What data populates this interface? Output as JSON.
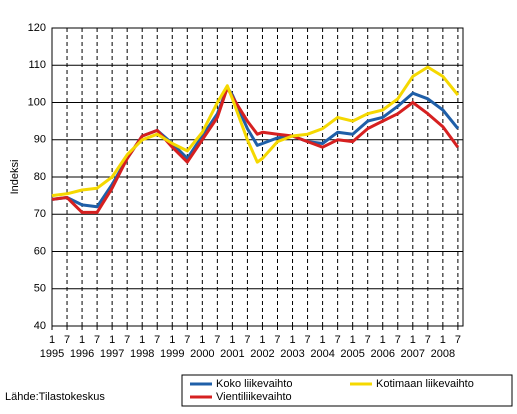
{
  "chart_data": {
    "type": "line",
    "ylabel": "Indeksi",
    "source": "Lähde:Tilastokeskus",
    "x": [
      1995,
      1995.5,
      1996,
      1996.5,
      1997,
      1997.5,
      1998,
      1998.5,
      1999,
      1999.5,
      2000,
      2000.5,
      2000.83,
      2001,
      2001.5,
      2001.83,
      2002,
      2002.5,
      2003,
      2003.5,
      2004,
      2004.5,
      2005,
      2005.5,
      2006,
      2006.5,
      2007,
      2007.5,
      2008,
      2008.5
    ],
    "series": [
      {
        "name": "Koko liikevaihto",
        "color": "#1f5fa8",
        "values": [
          74,
          74.5,
          72.5,
          72,
          78,
          85,
          91,
          92.5,
          89,
          85,
          91,
          97,
          104,
          102,
          93,
          88.5,
          89,
          90.5,
          91,
          89.5,
          89,
          92,
          91.5,
          95,
          96,
          99,
          102.5,
          101,
          98,
          93
        ]
      },
      {
        "name": "Vientiliikevaihto",
        "color": "#d62020",
        "values": [
          74,
          74.5,
          70.5,
          70.5,
          77,
          85,
          91,
          92.5,
          88,
          84,
          90,
          96,
          104,
          101.5,
          95,
          91.5,
          92,
          91.5,
          91,
          89.5,
          88,
          90,
          89.5,
          93,
          95,
          97,
          100,
          97,
          93.5,
          88
        ]
      },
      {
        "name": "Kotimaan liikevaihto",
        "color": "#f5d800",
        "values": [
          75,
          75.5,
          76.5,
          77,
          80,
          86,
          90,
          91.5,
          89,
          87,
          92,
          100,
          104.5,
          101,
          90,
          84,
          85,
          89.5,
          91,
          91.5,
          93,
          96,
          95,
          97,
          98,
          101,
          107,
          109.5,
          107,
          102
        ]
      }
    ],
    "xlim": [
      1995,
      2008.67
    ],
    "xticks": [
      {
        "value": 1995,
        "label": "1"
      },
      {
        "value": 1995.5,
        "label": "7"
      },
      {
        "value": 1996,
        "label": "1"
      },
      {
        "value": 1996.5,
        "label": "7"
      },
      {
        "value": 1997,
        "label": "1"
      },
      {
        "value": 1997.5,
        "label": "7"
      },
      {
        "value": 1998,
        "label": "1"
      },
      {
        "value": 1998.5,
        "label": "7"
      },
      {
        "value": 1999,
        "label": "1"
      },
      {
        "value": 1999.5,
        "label": "7"
      },
      {
        "value": 2000,
        "label": "1"
      },
      {
        "value": 2000.5,
        "label": "7"
      },
      {
        "value": 2001,
        "label": "1"
      },
      {
        "value": 2001.5,
        "label": "7"
      },
      {
        "value": 2002,
        "label": "1"
      },
      {
        "value": 2002.5,
        "label": "7"
      },
      {
        "value": 2003,
        "label": "1"
      },
      {
        "value": 2003.5,
        "label": "7"
      },
      {
        "value": 2004,
        "label": "1"
      },
      {
        "value": 2004.5,
        "label": "7"
      },
      {
        "value": 2005,
        "label": "1"
      },
      {
        "value": 2005.5,
        "label": "7"
      },
      {
        "value": 2006,
        "label": "1"
      },
      {
        "value": 2006.5,
        "label": "7"
      },
      {
        "value": 2007,
        "label": "1"
      },
      {
        "value": 2007.5,
        "label": "7"
      },
      {
        "value": 2008,
        "label": "1"
      },
      {
        "value": 2008.5,
        "label": "7"
      }
    ],
    "year_labels": [
      1995,
      1996,
      1997,
      1998,
      1999,
      2000,
      2001,
      2002,
      2003,
      2004,
      2005,
      2006,
      2007,
      2008
    ],
    "ylim": [
      40,
      120
    ],
    "yticks": [
      40,
      50,
      60,
      70,
      80,
      90,
      100,
      110,
      120
    ],
    "grid": true
  }
}
